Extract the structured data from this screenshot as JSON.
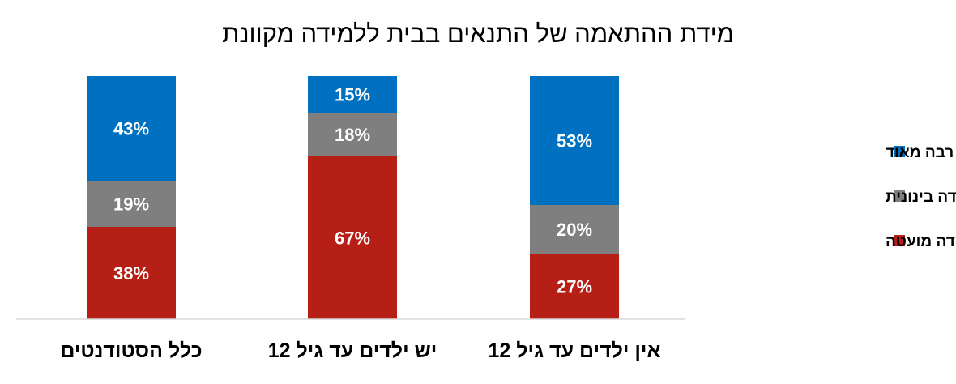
{
  "chart_data": {
    "type": "bar",
    "stacked": true,
    "percent_stacked": true,
    "title": "מידת ההתאמה של התנאים בבית ללמידה מקוונת",
    "categories": [
      "כלל הסטודנטים",
      "יש ילדים עד גיל 12",
      "אין ילדים עד גיל 12"
    ],
    "series": [
      {
        "name": "כלל לא / במידה מועטה",
        "values": [
          38,
          67,
          27
        ],
        "labels": [
          "38%",
          "67%",
          "27%"
        ],
        "color": "#B51F16"
      },
      {
        "name": "במידה בינונית",
        "values": [
          19,
          18,
          20
        ],
        "labels": [
          "19%",
          "18%",
          "20%"
        ],
        "color": "#7F7F7F"
      },
      {
        "name": "במידה רבה / רבה מאוד",
        "values": [
          43,
          15,
          53
        ],
        "labels": [
          "43%",
          "15%",
          "53%"
        ],
        "color": "#0070C0"
      }
    ],
    "legend_order": [
      2,
      1,
      0
    ],
    "legend_position": "right",
    "ylim": [
      0,
      100
    ],
    "grid": false,
    "y_axis_visible": false
  }
}
